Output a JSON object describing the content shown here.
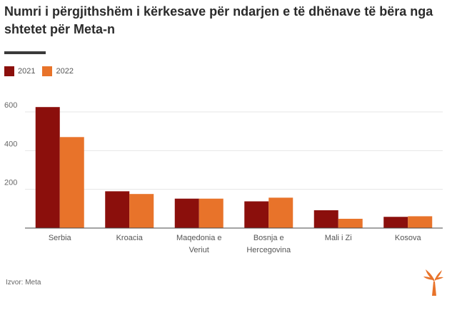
{
  "title": "Numri i përgjithshëm i kërkesave për ndarjen e të dhënave të bëra nga shtetet për Meta-n",
  "source": "Izvor: Meta",
  "colors": {
    "series_2021": "#8b0f0c",
    "series_2022": "#e8732a",
    "grid": "#e6e6e6",
    "axis": "#4a4a4a"
  },
  "logo_icon": "rfe-torch-logo-icon",
  "chart_data": {
    "type": "bar",
    "categories": [
      [
        "Serbia"
      ],
      [
        "Kroacia"
      ],
      [
        "Maqedonia e",
        "Veriut"
      ],
      [
        "Bosnja e",
        "Hercegovina"
      ],
      [
        "Mali i Zi"
      ],
      [
        "Kosova"
      ]
    ],
    "series": [
      {
        "name": "2021",
        "values": [
          625,
          190,
          152,
          138,
          92,
          58
        ]
      },
      {
        "name": "2022",
        "values": [
          470,
          176,
          152,
          157,
          48,
          61
        ]
      }
    ],
    "ylim": [
      0,
      700
    ],
    "yticks": [
      "600",
      "400",
      "200"
    ],
    "ytick_values": [
      600,
      400,
      200
    ],
    "grid": true,
    "legend": "top-left"
  }
}
